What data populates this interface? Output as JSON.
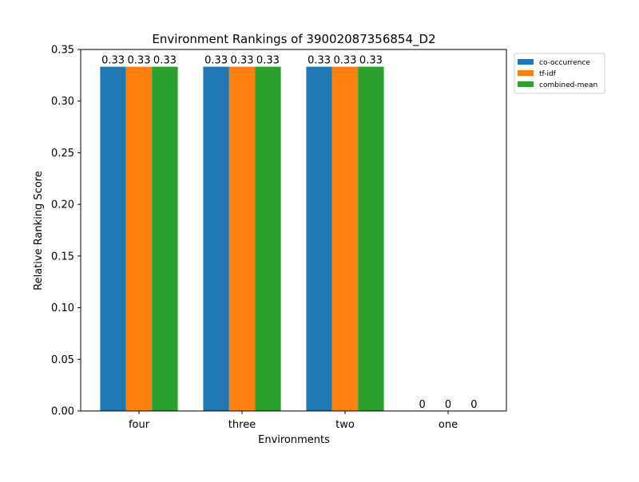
{
  "chart_data": {
    "type": "bar",
    "title": "Environment Rankings of 39002087356854_D2",
    "xlabel": "Environments",
    "ylabel": "Relative Ranking Score",
    "categories": [
      "four",
      "three",
      "two",
      "one"
    ],
    "series": [
      {
        "name": "co-occurrence",
        "color": "#1f77b4",
        "values": [
          0.33,
          0.33,
          0.33,
          0.0
        ]
      },
      {
        "name": "tf-idf",
        "color": "#ff7f0e",
        "values": [
          0.33,
          0.33,
          0.33,
          0.0
        ]
      },
      {
        "name": "combined-mean",
        "color": "#2ca02c",
        "values": [
          0.33,
          0.33,
          0.33,
          0.0
        ]
      }
    ],
    "bar_values": [
      0.3333,
      0.3333,
      0.3333,
      0.0
    ],
    "ylim": [
      0,
      0.35
    ],
    "yticks": [
      "0.00",
      "0.05",
      "0.10",
      "0.15",
      "0.20",
      "0.25",
      "0.30",
      "0.35"
    ],
    "legend_position": "outside-top-right",
    "grid": false
  }
}
